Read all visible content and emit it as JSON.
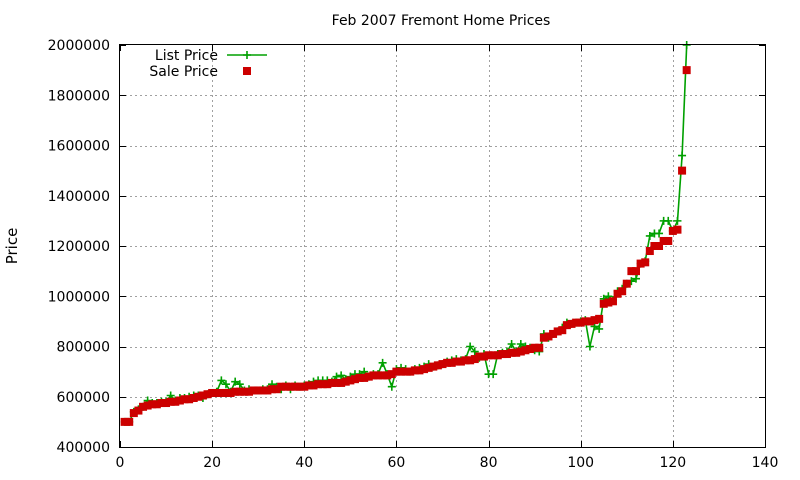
{
  "chart_data": {
    "type": "line",
    "title": "Feb 2007 Fremont Home Prices",
    "xlabel": "",
    "ylabel": "Price",
    "xlim": [
      0,
      140
    ],
    "ylim": [
      400000,
      2000000
    ],
    "x_ticks": [
      0,
      20,
      40,
      60,
      80,
      100,
      120,
      140
    ],
    "y_ticks": [
      400000,
      600000,
      800000,
      1000000,
      1200000,
      1400000,
      1600000,
      1800000,
      2000000
    ],
    "grid": true,
    "legend_position": "top-left",
    "series": [
      {
        "name": "List Price",
        "style": "linespoints",
        "color": "#00a000",
        "x": [
          1,
          2,
          3,
          4,
          5,
          6,
          7,
          8,
          9,
          10,
          11,
          12,
          13,
          14,
          15,
          16,
          17,
          18,
          19,
          20,
          21,
          22,
          23,
          24,
          25,
          26,
          27,
          28,
          29,
          30,
          31,
          32,
          33,
          34,
          35,
          36,
          37,
          38,
          39,
          40,
          41,
          42,
          43,
          44,
          45,
          46,
          47,
          48,
          49,
          50,
          51,
          52,
          53,
          54,
          55,
          56,
          57,
          58,
          59,
          60,
          61,
          62,
          63,
          64,
          65,
          66,
          67,
          68,
          69,
          70,
          71,
          72,
          73,
          74,
          75,
          76,
          77,
          78,
          79,
          80,
          81,
          82,
          83,
          84,
          85,
          86,
          87,
          88,
          89,
          90,
          91,
          92,
          93,
          94,
          95,
          96,
          97,
          98,
          99,
          100,
          101,
          102,
          103,
          104,
          105,
          106,
          107,
          108,
          109,
          110,
          111,
          112,
          113,
          114,
          115,
          116,
          117,
          118,
          119,
          120,
          121,
          122,
          123
        ],
        "values": [
          500000,
          500000,
          540000,
          550000,
          560000,
          585000,
          575000,
          575000,
          580000,
          580000,
          605000,
          585000,
          595000,
          595000,
          600000,
          605000,
          605000,
          595000,
          610000,
          615000,
          620000,
          665000,
          650000,
          620000,
          660000,
          650000,
          625000,
          630000,
          625000,
          625000,
          630000,
          630000,
          650000,
          640000,
          630000,
          645000,
          630000,
          645000,
          640000,
          645000,
          650000,
          660000,
          665000,
          665000,
          665000,
          660000,
          680000,
          685000,
          670000,
          680000,
          690000,
          690000,
          700000,
          680000,
          690000,
          690000,
          735000,
          690000,
          640000,
          710000,
          715000,
          710000,
          700000,
          710000,
          715000,
          720000,
          730000,
          720000,
          725000,
          730000,
          740000,
          745000,
          750000,
          745000,
          750000,
          800000,
          780000,
          755000,
          770000,
          690000,
          690000,
          770000,
          775000,
          780000,
          810000,
          780000,
          810000,
          800000,
          795000,
          785000,
          780000,
          850000,
          835000,
          850000,
          860000,
          875000,
          895000,
          890000,
          895000,
          900000,
          905000,
          800000,
          880000,
          870000,
          990000,
          1000000,
          985000,
          1020000,
          1030000,
          1050000,
          1060000,
          1070000,
          1130000,
          1140000,
          1240000,
          1250000,
          1250000,
          1300000,
          1300000,
          1260000,
          1300000,
          1560000,
          2000000
        ]
      },
      {
        "name": "Sale Price",
        "style": "points",
        "color": "#cc0000",
        "x": [
          1,
          2,
          3,
          4,
          5,
          6,
          7,
          8,
          9,
          10,
          11,
          12,
          13,
          14,
          15,
          16,
          17,
          18,
          19,
          20,
          21,
          22,
          23,
          24,
          25,
          26,
          27,
          28,
          29,
          30,
          31,
          32,
          33,
          34,
          35,
          36,
          37,
          38,
          39,
          40,
          41,
          42,
          43,
          44,
          45,
          46,
          47,
          48,
          49,
          50,
          51,
          52,
          53,
          54,
          55,
          56,
          57,
          58,
          59,
          60,
          61,
          62,
          63,
          64,
          65,
          66,
          67,
          68,
          69,
          70,
          71,
          72,
          73,
          74,
          75,
          76,
          77,
          78,
          79,
          80,
          81,
          82,
          83,
          84,
          85,
          86,
          87,
          88,
          89,
          90,
          91,
          92,
          93,
          94,
          95,
          96,
          97,
          98,
          99,
          100,
          101,
          102,
          103,
          104,
          105,
          106,
          107,
          108,
          109,
          110,
          111,
          112,
          113,
          114,
          115,
          116,
          117,
          118,
          119,
          120,
          121,
          122,
          123
        ],
        "values": [
          500000,
          500000,
          535000,
          545000,
          560000,
          565000,
          570000,
          570000,
          575000,
          575000,
          580000,
          580000,
          585000,
          590000,
          590000,
          595000,
          600000,
          605000,
          610000,
          615000,
          615000,
          615000,
          615000,
          615000,
          620000,
          620000,
          620000,
          620000,
          625000,
          625000,
          625000,
          625000,
          630000,
          630000,
          640000,
          640000,
          640000,
          640000,
          640000,
          640000,
          645000,
          645000,
          650000,
          650000,
          650000,
          655000,
          655000,
          655000,
          660000,
          665000,
          670000,
          675000,
          675000,
          680000,
          685000,
          685000,
          685000,
          685000,
          690000,
          700000,
          700000,
          700000,
          700000,
          705000,
          705000,
          710000,
          715000,
          720000,
          725000,
          730000,
          735000,
          735000,
          740000,
          740000,
          745000,
          745000,
          750000,
          760000,
          760000,
          765000,
          765000,
          765000,
          770000,
          770000,
          775000,
          775000,
          780000,
          785000,
          790000,
          795000,
          795000,
          835000,
          840000,
          850000,
          860000,
          865000,
          885000,
          890000,
          895000,
          895000,
          900000,
          900000,
          905000,
          910000,
          970000,
          975000,
          980000,
          1010000,
          1020000,
          1050000,
          1100000,
          1100000,
          1130000,
          1135000,
          1180000,
          1200000,
          1200000,
          1220000,
          1220000,
          1260000,
          1265000,
          1500000,
          1900000
        ]
      }
    ]
  }
}
